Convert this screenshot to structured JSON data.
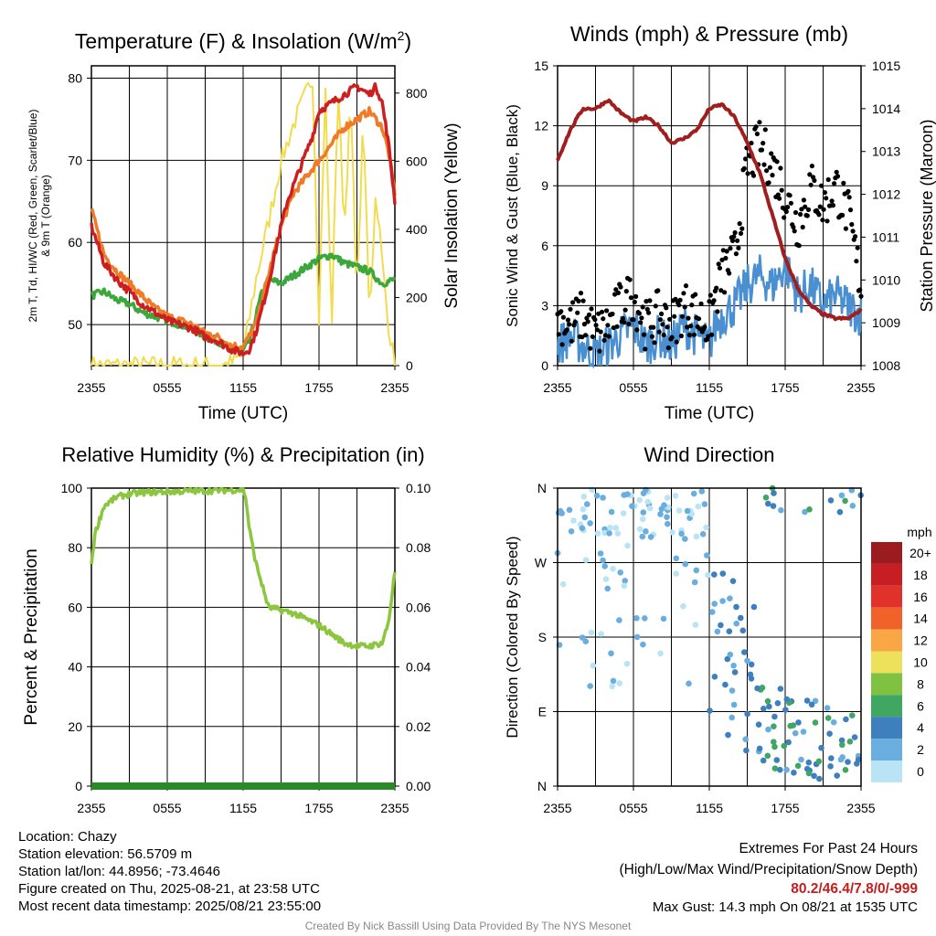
{
  "chart_data": [
    {
      "type": "line",
      "title": "Temperature (F) & Insolation (W/m²)",
      "xlabel": "Time (UTC)",
      "ylabel": "2m T, Td, HI/WC (Red, Green, Scarlet/Blue) & 9m T (Orange)",
      "ylabel_right": "Solar Insolation (Yellow)",
      "x_ticks": [
        "2355",
        "0555",
        "1155",
        "1755",
        "2355"
      ],
      "ylim": [
        45,
        81.5
      ],
      "y_ticks": [
        50,
        60,
        70,
        80
      ],
      "y2lim": [
        0,
        880
      ],
      "y2_ticks": [
        0,
        200,
        400,
        600,
        800
      ],
      "series": [
        {
          "axis": "left",
          "color": "#cc2020",
          "x": [
            0,
            1,
            2,
            3,
            4,
            5,
            6,
            7,
            8,
            9,
            10,
            11,
            12,
            12.5,
            13,
            14,
            15,
            15.5,
            16,
            17,
            17.5,
            18,
            19,
            20,
            21,
            22,
            22.5,
            23,
            23.5,
            24
          ],
          "y": [
            62,
            57.5,
            55.5,
            54,
            52.5,
            51.5,
            50.5,
            50,
            49.5,
            48.5,
            48,
            47,
            46.5,
            47,
            49,
            55,
            62,
            65,
            67,
            71,
            73,
            76,
            77,
            78,
            79,
            78,
            79,
            77,
            72,
            65
          ]
        },
        {
          "axis": "left",
          "color": "#f07a28",
          "x": [
            0,
            1,
            2,
            3,
            4,
            5,
            6,
            7,
            8,
            9,
            10,
            11,
            12,
            13,
            14,
            15,
            16,
            17,
            18,
            19,
            20,
            21,
            22,
            23,
            23.5,
            24
          ],
          "y": [
            64,
            58.5,
            56.5,
            55,
            53.5,
            52,
            51,
            50.5,
            50,
            49,
            48.5,
            47.5,
            47.3,
            50,
            56,
            62,
            66,
            68,
            70,
            72,
            74,
            75,
            76,
            74,
            71,
            66
          ]
        },
        {
          "axis": "left",
          "color": "#3ca83c",
          "x": [
            0,
            1,
            2,
            3,
            4,
            5,
            6,
            7,
            8,
            9,
            10,
            11,
            12,
            12.5,
            13,
            13.5,
            14,
            15,
            16,
            17,
            18,
            19,
            20,
            21,
            22,
            23,
            24
          ],
          "y": [
            53.5,
            54,
            53,
            52.5,
            51.5,
            51,
            50.5,
            50,
            49.5,
            48.5,
            48,
            47,
            46.8,
            48,
            51,
            54,
            55.5,
            55,
            56,
            57,
            58,
            58.5,
            57.5,
            57,
            56.5,
            55,
            55.5
          ]
        },
        {
          "axis": "right",
          "color": "#f2dc4c",
          "x": [
            0,
            10,
            11,
            12,
            13,
            14,
            15,
            16,
            17,
            17.5,
            18,
            18.5,
            19,
            19.5,
            20,
            20.5,
            21,
            21.5,
            22,
            22.5,
            23,
            23.5,
            24
          ],
          "y": [
            0,
            0,
            5,
            30,
            250,
            420,
            600,
            710,
            800,
            850,
            150,
            820,
            100,
            830,
            400,
            780,
            200,
            720,
            150,
            520,
            300,
            120,
            0
          ]
        }
      ]
    },
    {
      "type": "scatter",
      "title": "Winds (mph) & Pressure (mb)",
      "xlabel": "Time (UTC)",
      "ylabel": "Sonic Wind & Gust (Blue, Black)",
      "ylabel_right": "Station Pressure (Maroon)",
      "x_ticks": [
        "2355",
        "0555",
        "1155",
        "1755",
        "2355"
      ],
      "ylim": [
        0,
        15
      ],
      "y_ticks": [
        0,
        3,
        6,
        9,
        12,
        15
      ],
      "y2lim": [
        1008,
        1015
      ],
      "y2_ticks": [
        1008,
        1009,
        1010,
        1011,
        1012,
        1013,
        1014,
        1015
      ],
      "wind": {
        "color": "#4a8fd0",
        "x": [
          0,
          1,
          2,
          3,
          4,
          5,
          6,
          7,
          8,
          9,
          10,
          11,
          12,
          12.5,
          13,
          14,
          15,
          16,
          17,
          18,
          19,
          20,
          21,
          22,
          23,
          24
        ],
        "y": [
          1,
          1.5,
          1,
          0.5,
          1,
          1.5,
          2,
          1,
          1.5,
          1,
          2,
          1.5,
          1,
          2,
          2.5,
          3,
          4,
          4.5,
          4,
          5,
          3.5,
          4,
          3,
          3.5,
          3,
          2.5
        ]
      },
      "gust": {
        "color": "#000000",
        "x": [
          0,
          1,
          2,
          3,
          4,
          5,
          6,
          7,
          8,
          9,
          10,
          11,
          12,
          12.5,
          13,
          14,
          15,
          16,
          17,
          18,
          19,
          20,
          21,
          22,
          23,
          24
        ],
        "y": [
          2.5,
          2,
          2.5,
          1.5,
          2,
          3,
          3.5,
          2,
          2.5,
          2,
          3,
          2.5,
          2,
          3.5,
          4.5,
          5.5,
          10,
          11,
          10,
          8.5,
          7,
          9,
          8,
          9,
          7.5,
          4
        ]
      },
      "pressure": {
        "color": "#a01e1e",
        "x": [
          0,
          1,
          2,
          3,
          4,
          5,
          6,
          7,
          8,
          9,
          10,
          11,
          12,
          13,
          14,
          15,
          16,
          17,
          18,
          19,
          20,
          21,
          22,
          23,
          24
        ],
        "y": [
          1012.8,
          1013.5,
          1014,
          1014,
          1014.2,
          1013.9,
          1013.7,
          1013.8,
          1013.6,
          1013.2,
          1013.3,
          1013.5,
          1014,
          1014.1,
          1013.8,
          1013.2,
          1012.5,
          1011.5,
          1010.5,
          1009.8,
          1009.4,
          1009.2,
          1009.1,
          1009.1,
          1009.3
        ]
      }
    },
    {
      "type": "line",
      "title": "Relative Humidity (%) & Precipitation (in)",
      "ylabel": "Percent & Precipitation",
      "x_ticks": [
        "2355",
        "0555",
        "1155",
        "1755",
        "2355"
      ],
      "ylim": [
        0,
        100
      ],
      "y_ticks": [
        0,
        20,
        40,
        60,
        80,
        100
      ],
      "y2lim": [
        0,
        0.1
      ],
      "y2_ticks": [
        "0.00",
        "0.02",
        "0.04",
        "0.06",
        "0.08",
        "0.10"
      ],
      "humidity": {
        "color": "#8cc63e",
        "x": [
          0,
          0.3,
          1,
          2,
          3,
          4,
          6,
          8,
          10,
          12,
          12.2,
          12.5,
          13,
          14,
          15,
          16,
          17,
          18,
          19,
          20,
          21,
          22,
          23,
          23.5,
          24
        ],
        "y": [
          75,
          85,
          94,
          97,
          98,
          98.5,
          98.8,
          99,
          99.2,
          99.5,
          97,
          86,
          75,
          60,
          59,
          58,
          56,
          54,
          51,
          48,
          47,
          47,
          48,
          55,
          72
        ]
      },
      "precipitation": {
        "color": "#2a8a2a",
        "x": [
          0,
          24
        ],
        "y": [
          0,
          0
        ]
      }
    },
    {
      "type": "scatter",
      "title": "Wind Direction",
      "ylabel": "Direction (Colored By Speed)",
      "x_ticks": [
        "2355",
        "0555",
        "1155",
        "1755",
        "2355"
      ],
      "y_ticks": [
        "N",
        "E",
        "S",
        "W",
        "N"
      ],
      "legend": {
        "title": "mph",
        "labels": [
          "20+",
          "18",
          "16",
          "14",
          "12",
          "10",
          "8",
          "6",
          "4",
          "2",
          "0"
        ],
        "colors": [
          "#9b1b1f",
          "#c61e22",
          "#e0322b",
          "#f0622a",
          "#f8a744",
          "#ede15b",
          "#7fc242",
          "#3fa762",
          "#3e7fbe",
          "#6aaee0",
          "#b8e4f6"
        ]
      }
    }
  ],
  "footer": {
    "location": "Location: Chazy",
    "elevation": "Station elevation: 56.5709 m",
    "latlon": "Station lat/lon: 44.8956; -73.4646",
    "created": "Figure created on Thu, 2025-08-21, at 23:58 UTC",
    "recent": "Most recent data timestamp: 2025/08/21 23:55:00",
    "extremes_title": "Extremes For Past 24 Hours",
    "extremes_sub": "(High/Low/Max Wind/Precipitation/Snow Depth)",
    "extremes_values": "80.2/46.4/7.8/0/-999",
    "max_gust": "Max Gust: 14.3 mph On 08/21 at 1535 UTC",
    "credit": "Created By Nick Bassill Using Data Provided By The NYS Mesonet"
  }
}
